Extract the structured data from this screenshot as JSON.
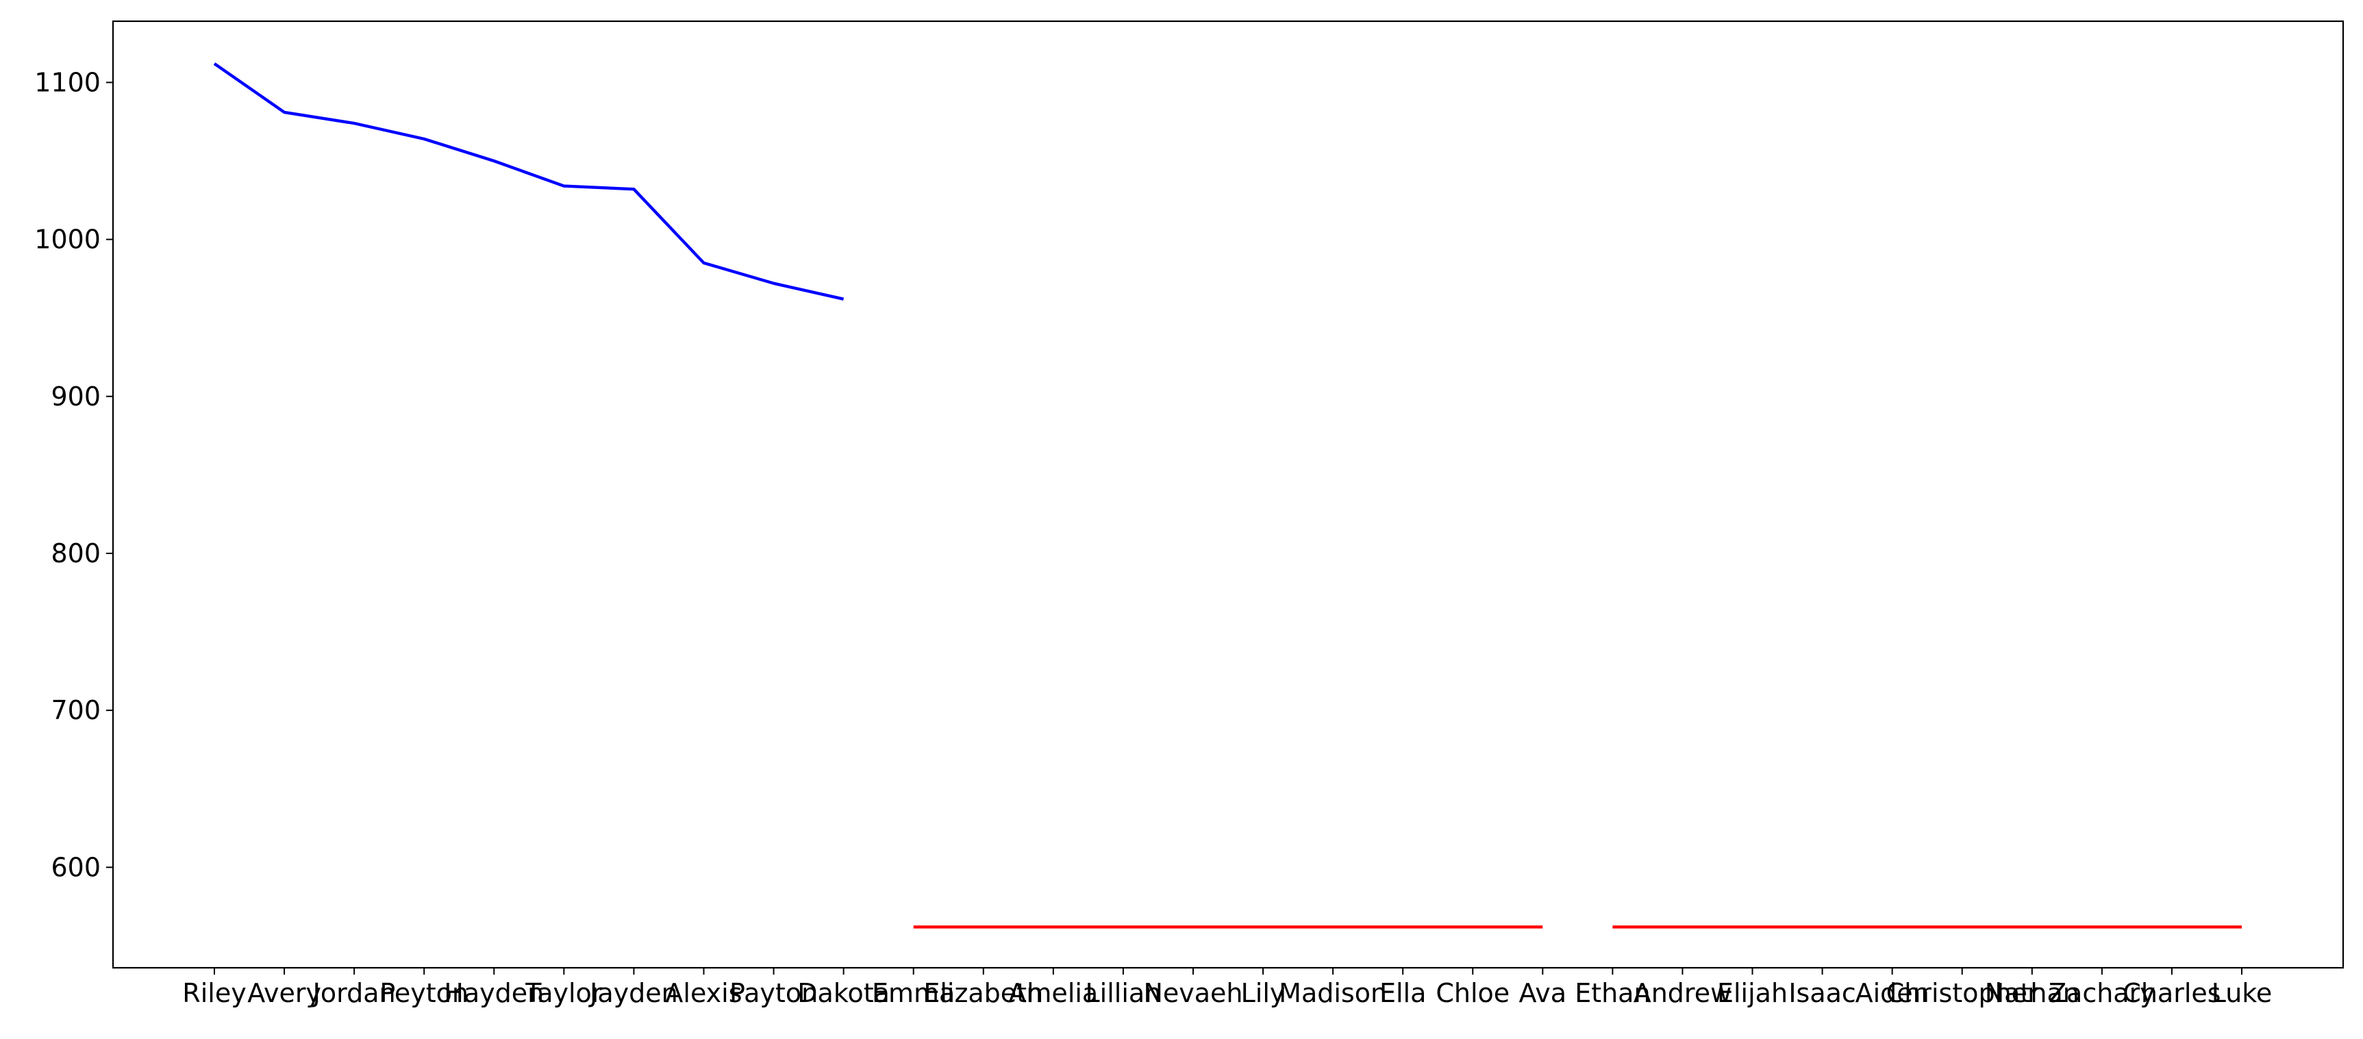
{
  "chart_data": {
    "type": "line",
    "categories": [
      "Riley",
      "Avery",
      "Jordan",
      "Peyton",
      "Hayden",
      "Taylor",
      "Jayden",
      "Alexis",
      "Payton",
      "Dakota",
      "Emma",
      "Elizabeth",
      "Amelia",
      "Lillian",
      "Nevaeh",
      "Lily",
      "Madison",
      "Ella",
      "Chloe",
      "Ava",
      "Ethan",
      "Andrew",
      "Elijah",
      "Isaac",
      "Aiden",
      "Christopher",
      "Nathan",
      "Zachary",
      "Charles",
      "Luke"
    ],
    "series": [
      {
        "color": "#0000ff",
        "values": [
          1112,
          1081,
          1074,
          1064,
          1050,
          1034,
          1032,
          985,
          972,
          962,
          null,
          null,
          null,
          null,
          null,
          null,
          null,
          null,
          null,
          null,
          null,
          null,
          null,
          null,
          null,
          null,
          null,
          null,
          null,
          null
        ]
      },
      {
        "color": "#ff0000",
        "values": [
          null,
          null,
          null,
          null,
          null,
          null,
          null,
          null,
          null,
          null,
          562,
          562,
          562,
          562,
          562,
          562,
          562,
          562,
          562,
          562,
          null,
          null,
          null,
          null,
          null,
          null,
          null,
          null,
          null,
          null
        ]
      },
      {
        "color": "#ff0000",
        "values": [
          null,
          null,
          null,
          null,
          null,
          null,
          null,
          null,
          null,
          null,
          null,
          null,
          null,
          null,
          null,
          null,
          null,
          null,
          null,
          null,
          562,
          562,
          562,
          562,
          562,
          562,
          562,
          562,
          562,
          562
        ]
      }
    ],
    "ylim": [
      536,
      1139
    ],
    "yticks": [
      600,
      700,
      800,
      900,
      1000,
      1100
    ],
    "grid": false
  }
}
